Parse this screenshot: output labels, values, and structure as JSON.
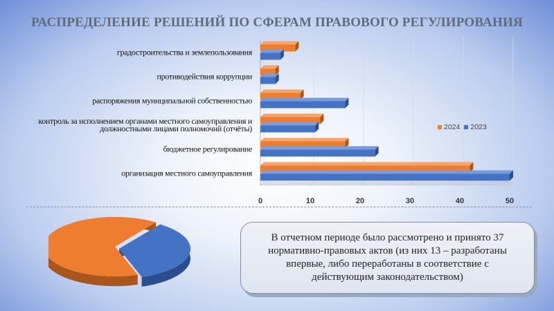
{
  "title": "РАСПРЕДЕЛЕНИЕ РЕШЕНИЙ ПО СФЕРАМ ПРАВОВОГО РЕГУЛИРОВАНИЯ",
  "colors": {
    "s2024": "#ee7d30",
    "s2023": "#4472c4"
  },
  "chart_data": {
    "type": "bar",
    "orientation": "horizontal",
    "categories": [
      [
        "градостроительства и землепользования"
      ],
      [
        "противодействия коррупции"
      ],
      [
        "распоряжения муниципальной собственностью"
      ],
      [
        "контроль за исполнением органами местного самоуправления и",
        "должностными лицами полномочий (отчёты)"
      ],
      [
        "бюджетное регулирование"
      ],
      [
        "организация местного самоуправления"
      ]
    ],
    "series": [
      {
        "name": "2024",
        "values": [
          7,
          3,
          8,
          12,
          17,
          42
        ]
      },
      {
        "name": "2023",
        "values": [
          4,
          3,
          17,
          11,
          23,
          50
        ]
      }
    ],
    "xticks": [
      "0",
      "10",
      "20",
      "30",
      "40",
      "50"
    ],
    "xlim": [
      0,
      50
    ],
    "legend": "right"
  },
  "pie_data": {
    "type": "pie",
    "slices": [
      {
        "value": 24,
        "color": "#ee7d30"
      },
      {
        "value": 13,
        "color": "#4472c4"
      }
    ]
  },
  "note": {
    "text": "В отчетном периоде было рассмотрено и принято 37 нормативно-правовых актов (из них 13 – разработаны впервые, либо переработаны в соответствие с действующим законодательством)"
  }
}
